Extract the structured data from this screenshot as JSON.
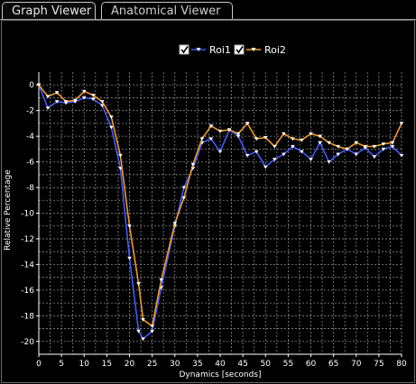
{
  "tabs": [
    {
      "label": "Graph Viewer",
      "active": true
    },
    {
      "label": "Anatomical Viewer",
      "active": false
    }
  ],
  "legend": [
    {
      "label": "Roi1",
      "checked": true,
      "color": "#3f5bff"
    },
    {
      "label": "Roi2",
      "checked": true,
      "color": "#f39a22"
    }
  ],
  "chart_data": {
    "type": "line",
    "xlabel": "Dynamics [seconds]",
    "ylabel": "Relative Percentage",
    "xlim": [
      0,
      80
    ],
    "ylim": [
      -21,
      1
    ],
    "xticks": [
      0,
      5,
      10,
      15,
      20,
      25,
      30,
      35,
      40,
      45,
      50,
      55,
      60,
      65,
      70,
      75,
      80
    ],
    "yticks": [
      0,
      -2,
      -4,
      -6,
      -8,
      -10,
      -12,
      -14,
      -16,
      -18,
      -20
    ],
    "grid": true,
    "legend_position": "top-center",
    "series": [
      {
        "name": "Roi1",
        "color": "#3f5bff",
        "x": [
          0,
          2,
          4,
          6,
          8,
          10,
          12,
          14,
          16,
          18,
          20,
          22,
          23,
          25,
          27,
          30,
          32,
          34,
          36,
          38,
          40,
          42,
          44,
          46,
          48,
          50,
          52,
          54,
          56,
          58,
          60,
          62,
          64,
          66,
          68,
          70,
          72,
          74,
          76,
          78,
          80
        ],
        "y": [
          0,
          -1.8,
          -1.3,
          -1.4,
          -1.3,
          -1.0,
          -1.1,
          -1.6,
          -3.3,
          -6.5,
          -13.5,
          -19.2,
          -19.8,
          -19.2,
          -15.8,
          -11.0,
          -8.0,
          -6.5,
          -4.5,
          -4.2,
          -5.2,
          -3.5,
          -4.0,
          -5.5,
          -5.2,
          -6.4,
          -5.8,
          -5.4,
          -4.8,
          -5.2,
          -5.8,
          -4.5,
          -6.0,
          -5.4,
          -5.0,
          -5.4,
          -4.9,
          -5.6,
          -5.0,
          -4.8,
          -5.5
        ]
      },
      {
        "name": "Roi2",
        "color": "#f39a22",
        "x": [
          0,
          2,
          4,
          6,
          8,
          10,
          12,
          14,
          16,
          18,
          20,
          22,
          23,
          25,
          27,
          30,
          32,
          34,
          36,
          38,
          40,
          42,
          44,
          46,
          48,
          50,
          52,
          54,
          56,
          58,
          60,
          62,
          64,
          66,
          68,
          70,
          72,
          74,
          76,
          78,
          80
        ],
        "y": [
          0,
          -0.9,
          -0.6,
          -1.3,
          -1.2,
          -0.5,
          -0.8,
          -1.3,
          -2.5,
          -5.5,
          -11.0,
          -15.5,
          -18.3,
          -18.8,
          -15.2,
          -10.8,
          -8.8,
          -6.2,
          -4.2,
          -3.2,
          -3.6,
          -3.5,
          -3.8,
          -3.0,
          -4.2,
          -4.1,
          -4.8,
          -3.8,
          -4.2,
          -4.3,
          -3.8,
          -4.0,
          -4.5,
          -4.8,
          -5.0,
          -4.5,
          -4.8,
          -4.8,
          -4.6,
          -4.5,
          -3.0
        ]
      }
    ]
  }
}
